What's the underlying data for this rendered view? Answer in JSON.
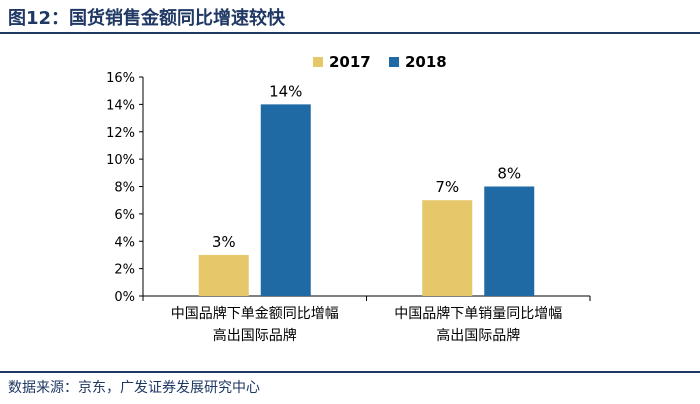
{
  "title": "图12：国货销售金额同比增速较快",
  "source": "数据来源：京东，广发证券发展研究中心",
  "colors": {
    "s2017": "#e6c86a",
    "s2018": "#1f6aa5",
    "rule": "#1f3864"
  },
  "chart_data": {
    "type": "bar",
    "title": "",
    "xlabel": "",
    "ylabel": "",
    "ylim": [
      0,
      16
    ],
    "y_ticks": [
      "0%",
      "2%",
      "4%",
      "6%",
      "8%",
      "10%",
      "12%",
      "14%",
      "16%"
    ],
    "y_tick_values": [
      0,
      2,
      4,
      6,
      8,
      10,
      12,
      14,
      16
    ],
    "categories": [
      [
        "中国品牌下单金额同比增幅",
        "高出国际品牌"
      ],
      [
        "中国品牌下单销量同比增幅",
        "高出国际品牌"
      ]
    ],
    "series": [
      {
        "name": "2017",
        "values": [
          3,
          7
        ],
        "labels": [
          "3%",
          "7%"
        ]
      },
      {
        "name": "2018",
        "values": [
          14,
          8
        ],
        "labels": [
          "14%",
          "8%"
        ]
      }
    ],
    "legend": "top",
    "grid": false
  }
}
